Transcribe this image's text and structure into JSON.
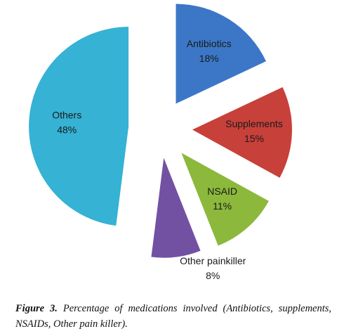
{
  "chart_data": {
    "type": "pie",
    "categories": [
      "Antibiotics",
      "Supplements",
      "NSAID",
      "Other painkiller",
      "Others"
    ],
    "values": [
      18,
      15,
      11,
      8,
      48
    ],
    "value_labels": [
      "18%",
      "15%",
      "11%",
      "8%",
      "48%"
    ],
    "colors": [
      "#3b77c6",
      "#c8403a",
      "#8cb83c",
      "#7251a2",
      "#35b2d4"
    ]
  },
  "caption": {
    "label": "Figure 3.",
    "text": "Percentage of medications involved (Antibiotics, supplements, NSAIDs, Other pain killer)."
  }
}
